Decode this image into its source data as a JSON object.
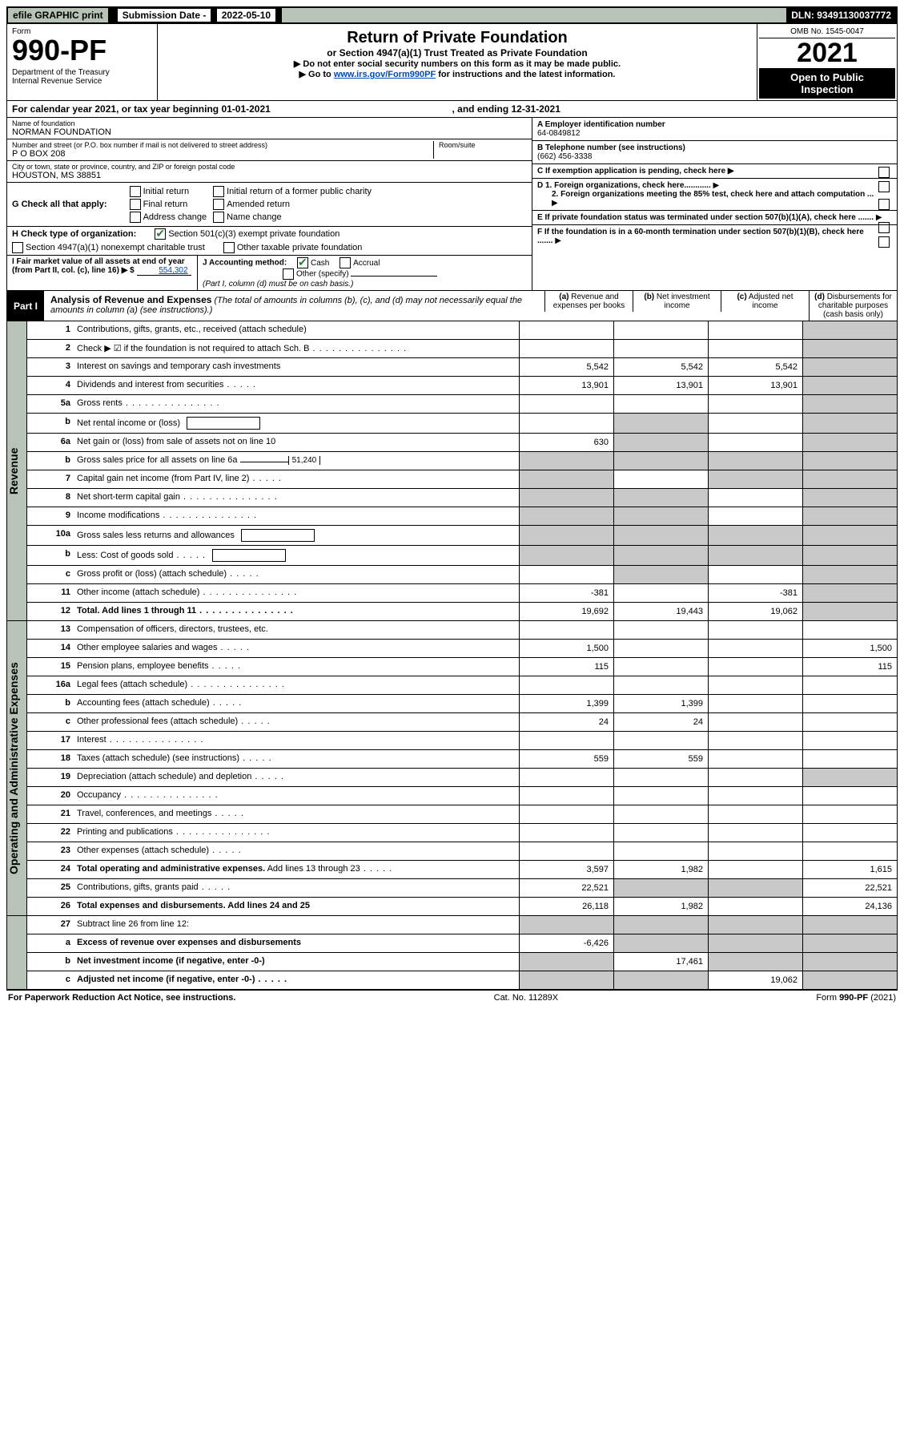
{
  "top": {
    "efile": "efile GRAPHIC print",
    "sub_label": "Submission Date -",
    "sub_date": "2022-05-10",
    "dln": "DLN: 93491130037772"
  },
  "header": {
    "form": "Form",
    "form_num": "990-PF",
    "dept": "Department of the Treasury\nInternal Revenue Service",
    "title": "Return of Private Foundation",
    "subtitle": "or Section 4947(a)(1) Trust Treated as Private Foundation",
    "note1": "▶ Do not enter social security numbers on this form as it may be made public.",
    "note2_a": "▶ Go to ",
    "note2_link": "www.irs.gov/Form990PF",
    "note2_b": " for instructions and the latest information.",
    "omb": "OMB No. 1545-0047",
    "year": "2021",
    "open": "Open to Public\nInspection"
  },
  "cal": {
    "a": "For calendar year 2021, or tax year beginning 01-01-2021",
    "b": ", and ending 12-31-2021"
  },
  "left": {
    "name_lbl": "Name of foundation",
    "name": "NORMAN FOUNDATION",
    "addr_lbl": "Number and street (or P.O. box number if mail is not delivered to street address)",
    "addr": "P O BOX 208",
    "room_lbl": "Room/suite",
    "city_lbl": "City or town, state or province, country, and ZIP or foreign postal code",
    "city": "HOUSTON, MS  38851",
    "g": "G Check all that apply:",
    "g1": "Initial return",
    "g2": "Final return",
    "g3": "Address change",
    "g4": "Initial return of a former public charity",
    "g5": "Amended return",
    "g6": "Name change",
    "h": "H Check type of organization:",
    "h1": "Section 501(c)(3) exempt private foundation",
    "h2": "Section 4947(a)(1) nonexempt charitable trust",
    "h3": "Other taxable private foundation",
    "i": "I Fair market value of all assets at end of year (from Part II, col. (c), line 16) ▶ $",
    "i_val": "554,302",
    "j": "J Accounting method:",
    "j1": "Cash",
    "j2": "Accrual",
    "j3": "Other (specify)",
    "j_note": "(Part I, column (d) must be on cash basis.)"
  },
  "right": {
    "a_lbl": "A Employer identification number",
    "a": "64-0849812",
    "b_lbl": "B Telephone number (see instructions)",
    "b": "(662) 456-3338",
    "c": "C If exemption application is pending, check here ▶",
    "d1": "D 1. Foreign organizations, check here............",
    "d2": "2. Foreign organizations meeting the 85% test, check here and attach computation ...",
    "e": "E  If private foundation status was terminated under section 507(b)(1)(A), check here .......",
    "f": "F  If the foundation is in a 60-month termination under section 507(b)(1)(B), check here .......",
    "arrow": "▶"
  },
  "part1": {
    "label": "Part I",
    "title": "Analysis of Revenue and Expenses",
    "note": " (The total of amounts in columns (b), (c), and (d) may not necessarily equal the amounts in column (a) (see instructions).)",
    "col_a": "(a)  Revenue and expenses per books",
    "col_b": "(b)  Net investment income",
    "col_c": "(c)  Adjusted net income",
    "col_d": "(d)  Disbursements for charitable purposes (cash basis only)"
  },
  "sections": {
    "revenue": "Revenue",
    "expenses": "Operating and Administrative Expenses"
  },
  "rows": [
    {
      "n": "1",
      "d": "Contributions, gifts, grants, etc., received (attach schedule)",
      "a": "",
      "b": "",
      "c": "",
      "dd": "",
      "d_gray": false
    },
    {
      "n": "2",
      "d": "Check ▶ ☑ if the foundation is not required to attach Sch. B",
      "dots": true,
      "a": "",
      "b": "",
      "c": "",
      "dd": ""
    },
    {
      "n": "3",
      "d": "Interest on savings and temporary cash investments",
      "a": "5,542",
      "b": "5,542",
      "c": "5,542",
      "dd": ""
    },
    {
      "n": "4",
      "d": "Dividends and interest from securities",
      "dots_s": true,
      "a": "13,901",
      "b": "13,901",
      "c": "13,901",
      "dd": ""
    },
    {
      "n": "5a",
      "d": "Gross rents",
      "dots": true,
      "a": "",
      "b": "",
      "c": "",
      "dd": ""
    },
    {
      "n": "b",
      "d": "Net rental income or (loss)",
      "inline": true,
      "a": "",
      "b": "",
      "c": "",
      "dd": "",
      "ab_gray": true
    },
    {
      "n": "6a",
      "d": "Net gain or (loss) from sale of assets not on line 10",
      "a": "630",
      "b": "",
      "c": "",
      "dd": "",
      "b_gray": true
    },
    {
      "n": "b",
      "d": "Gross sales price for all assets on line 6a",
      "inline_val": "51,240",
      "a": "",
      "b": "",
      "c": "",
      "dd": "",
      "all_gray": true
    },
    {
      "n": "7",
      "d": "Capital gain net income (from Part IV, line 2)",
      "dots_s": true,
      "a": "",
      "b": "",
      "c": "",
      "dd": "",
      "a_gray": true,
      "c_gray": true
    },
    {
      "n": "8",
      "d": "Net short-term capital gain",
      "dots": true,
      "a": "",
      "b": "",
      "c": "",
      "dd": "",
      "a_gray": true,
      "b_gray": true
    },
    {
      "n": "9",
      "d": "Income modifications",
      "dots": true,
      "a": "",
      "b": "",
      "c": "",
      "dd": "",
      "a_gray": true,
      "b_gray": true
    },
    {
      "n": "10a",
      "d": "Gross sales less returns and allowances",
      "inline": true,
      "a": "",
      "b": "",
      "c": "",
      "dd": "",
      "all_gray": true
    },
    {
      "n": "b",
      "d": "Less: Cost of goods sold",
      "dots_s": true,
      "inline": true,
      "a": "",
      "b": "",
      "c": "",
      "dd": "",
      "all_gray": true
    },
    {
      "n": "c",
      "d": "Gross profit or (loss) (attach schedule)",
      "dots_s": true,
      "a": "",
      "b": "",
      "c": "",
      "dd": "",
      "b_gray": true
    },
    {
      "n": "11",
      "d": "Other income (attach schedule)",
      "dots": true,
      "a": "-381",
      "b": "",
      "c": "-381",
      "dd": ""
    },
    {
      "n": "12",
      "d": "Total. Add lines 1 through 11",
      "dots": true,
      "bold": true,
      "a": "19,692",
      "b": "19,443",
      "c": "19,062",
      "dd": ""
    }
  ],
  "exp_rows": [
    {
      "n": "13",
      "d": "Compensation of officers, directors, trustees, etc.",
      "a": "",
      "b": "",
      "c": "",
      "dd": ""
    },
    {
      "n": "14",
      "d": "Other employee salaries and wages",
      "dots_s": true,
      "a": "1,500",
      "b": "",
      "c": "",
      "dd": "1,500"
    },
    {
      "n": "15",
      "d": "Pension plans, employee benefits",
      "dots_s": true,
      "a": "115",
      "b": "",
      "c": "",
      "dd": "115"
    },
    {
      "n": "16a",
      "d": "Legal fees (attach schedule)",
      "dots": true,
      "a": "",
      "b": "",
      "c": "",
      "dd": ""
    },
    {
      "n": "b",
      "d": "Accounting fees (attach schedule)",
      "dots_s": true,
      "a": "1,399",
      "b": "1,399",
      "c": "",
      "dd": ""
    },
    {
      "n": "c",
      "d": "Other professional fees (attach schedule)",
      "dots_s": true,
      "a": "24",
      "b": "24",
      "c": "",
      "dd": ""
    },
    {
      "n": "17",
      "d": "Interest",
      "dots": true,
      "a": "",
      "b": "",
      "c": "",
      "dd": ""
    },
    {
      "n": "18",
      "d": "Taxes (attach schedule) (see instructions)",
      "dots_s": true,
      "a": "559",
      "b": "559",
      "c": "",
      "dd": ""
    },
    {
      "n": "19",
      "d": "Depreciation (attach schedule) and depletion",
      "dots_s": true,
      "a": "",
      "b": "",
      "c": "",
      "dd": "",
      "d_gray": true
    },
    {
      "n": "20",
      "d": "Occupancy",
      "dots": true,
      "a": "",
      "b": "",
      "c": "",
      "dd": ""
    },
    {
      "n": "21",
      "d": "Travel, conferences, and meetings",
      "dots_s": true,
      "a": "",
      "b": "",
      "c": "",
      "dd": ""
    },
    {
      "n": "22",
      "d": "Printing and publications",
      "dots": true,
      "a": "",
      "b": "",
      "c": "",
      "dd": ""
    },
    {
      "n": "23",
      "d": "Other expenses (attach schedule)",
      "dots_s": true,
      "a": "",
      "b": "",
      "c": "",
      "dd": ""
    },
    {
      "n": "24",
      "d": "Total operating and administrative expenses. Add lines 13 through 23",
      "dots_s": true,
      "bold_first": true,
      "a": "3,597",
      "b": "1,982",
      "c": "",
      "dd": "1,615"
    },
    {
      "n": "25",
      "d": "Contributions, gifts, grants paid",
      "dots_s": true,
      "a": "22,521",
      "b": "",
      "c": "",
      "dd": "22,521",
      "b_gray": true,
      "c_gray": true
    },
    {
      "n": "26",
      "d": "Total expenses and disbursements. Add lines 24 and 25",
      "bold": true,
      "a": "26,118",
      "b": "1,982",
      "c": "",
      "dd": "24,136"
    }
  ],
  "bottom_rows": [
    {
      "n": "27",
      "d": "Subtract line 26 from line 12:",
      "a": "",
      "b": "",
      "c": "",
      "dd": "",
      "all_gray": true
    },
    {
      "n": "a",
      "d": "Excess of revenue over expenses and disbursements",
      "bold": true,
      "a": "-6,426",
      "b": "",
      "c": "",
      "dd": "",
      "bcd_gray": true
    },
    {
      "n": "b",
      "d": "Net investment income (if negative, enter -0-)",
      "bold": true,
      "a": "",
      "b": "17,461",
      "c": "",
      "dd": "",
      "a_gray": true,
      "cd_gray": true
    },
    {
      "n": "c",
      "d": "Adjusted net income (if negative, enter -0-)",
      "bold": true,
      "dots_s": true,
      "a": "",
      "b": "",
      "c": "19,062",
      "dd": "",
      "a_gray": true,
      "b_gray": true,
      "d_gray": true
    }
  ],
  "footer": {
    "left": "For Paperwork Reduction Act Notice, see instructions.",
    "mid": "Cat. No. 11289X",
    "right": "Form 990-PF (2021)"
  }
}
